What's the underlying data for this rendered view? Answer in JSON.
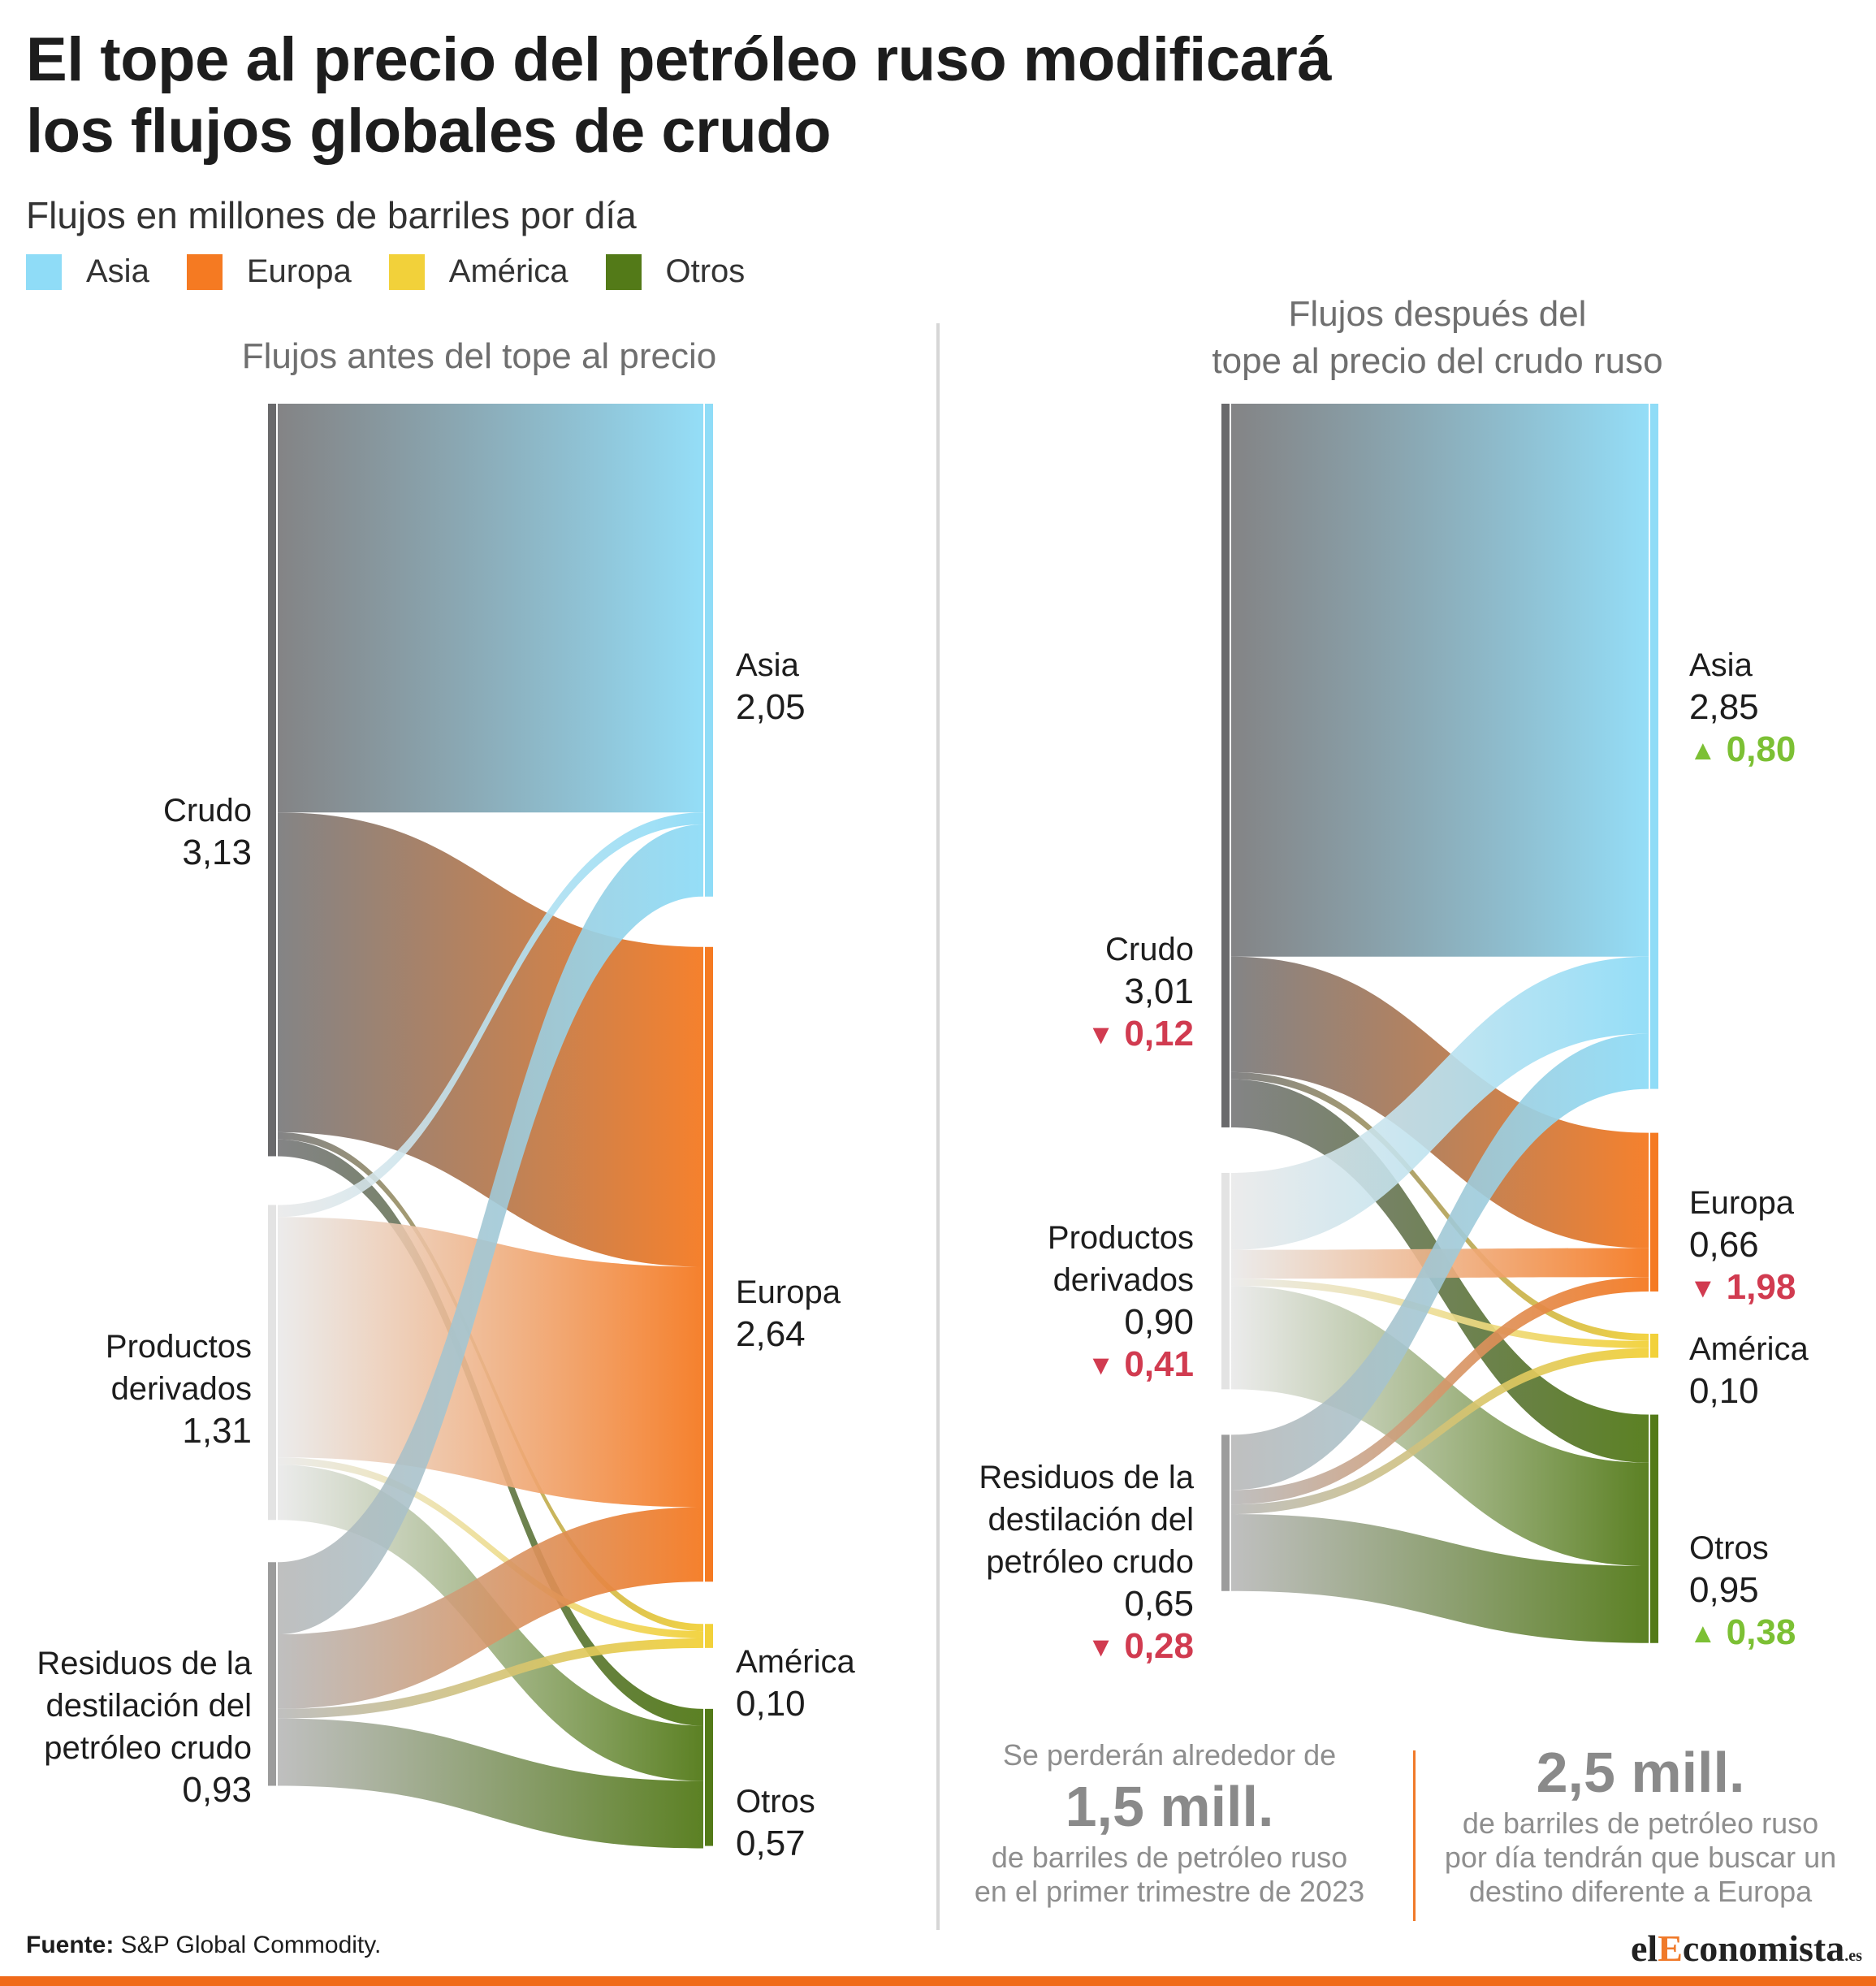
{
  "header": {
    "title": "El tope al precio del petróleo ruso modificará los flujos globales de crudo",
    "subtitle": "Flujos en millones de barriles por día"
  },
  "legend": [
    {
      "label": "Asia",
      "color": "#8fdcf7"
    },
    {
      "label": "Europa",
      "color": "#f57a22"
    },
    {
      "label": "América",
      "color": "#f2d13a"
    },
    {
      "label": "Otros",
      "color": "#537a18"
    }
  ],
  "panels": {
    "before_title": "Flujos antes del tope al precio",
    "after_title_line1": "Flujos después del",
    "after_title_line2": "tope al precio del crudo ruso"
  },
  "nodes_before": {
    "crudo": {
      "label": "Crudo",
      "value": "3,13"
    },
    "productos": {
      "label_1": "Productos",
      "label_2": "derivados",
      "value": "1,31"
    },
    "residuos": {
      "label_1": "Residuos de la",
      "label_2": "destilación del",
      "label_3": "petróleo crudo",
      "value": "0,93"
    },
    "asia": {
      "label": "Asia",
      "value": "2,05"
    },
    "europa": {
      "label": "Europa",
      "value": "2,64"
    },
    "america": {
      "label": "América",
      "value": "0,10"
    },
    "otros": {
      "label": "Otros",
      "value": "0,57"
    }
  },
  "nodes_after": {
    "crudo": {
      "label": "Crudo",
      "value": "3,01",
      "delta": "0,12"
    },
    "productos": {
      "label_1": "Productos",
      "label_2": "derivados",
      "value": "0,90",
      "delta": "0,41"
    },
    "residuos": {
      "label_1": "Residuos de la",
      "label_2": "destilación del",
      "label_3": "petróleo crudo",
      "value": "0,65",
      "delta": "0,28"
    },
    "asia": {
      "label": "Asia",
      "value": "2,85",
      "delta": "0,80"
    },
    "europa": {
      "label": "Europa",
      "value": "0,66",
      "delta": "1,98"
    },
    "america": {
      "label": "América",
      "value": "0,10"
    },
    "otros": {
      "label": "Otros",
      "value": "0,95",
      "delta": "0,38"
    }
  },
  "callouts": {
    "left_top": "Se perderán alrededor de",
    "left_big": "1,5 mill.",
    "left_bottom_1": "de barriles de petróleo ruso",
    "left_bottom_2": "en el primer trimestre de 2023",
    "right_big": "2,5 mill.",
    "right_1": "de barriles de petróleo ruso",
    "right_2": "por día tendrán que buscar un",
    "right_3": "destino diferente a Europa"
  },
  "footer": {
    "source_label": "Fuente:",
    "source_text": "S&P Global Commodity.",
    "logo_1": "el",
    "logo_2": "E",
    "logo_3": "conomista",
    "logo_4": ".es"
  },
  "chart_data": [
    {
      "type": "sankey",
      "title": "Flujos antes del tope al precio",
      "unit": "millones de barriles por día",
      "sources": [
        {
          "name": "Crudo",
          "value": 3.13
        },
        {
          "name": "Productos derivados",
          "value": 1.31
        },
        {
          "name": "Residuos de la destilación del petróleo crudo",
          "value": 0.93
        }
      ],
      "targets": [
        {
          "name": "Asia",
          "value": 2.05
        },
        {
          "name": "Europa",
          "value": 2.64
        },
        {
          "name": "América",
          "value": 0.1
        },
        {
          "name": "Otros",
          "value": 0.57
        }
      ],
      "flows": [
        {
          "source": "Crudo",
          "target": "Asia",
          "value": 1.7
        },
        {
          "source": "Crudo",
          "target": "Europa",
          "value": 1.33
        },
        {
          "source": "Crudo",
          "target": "América",
          "value": 0.03
        },
        {
          "source": "Crudo",
          "target": "Otros",
          "value": 0.07
        },
        {
          "source": "Productos derivados",
          "target": "Asia",
          "value": 0.05
        },
        {
          "source": "Productos derivados",
          "target": "Europa",
          "value": 1.0
        },
        {
          "source": "Productos derivados",
          "target": "América",
          "value": 0.03
        },
        {
          "source": "Productos derivados",
          "target": "Otros",
          "value": 0.23
        },
        {
          "source": "Residuos de la destilación del petróleo crudo",
          "target": "Asia",
          "value": 0.3
        },
        {
          "source": "Residuos de la destilación del petróleo crudo",
          "target": "Europa",
          "value": 0.31
        },
        {
          "source": "Residuos de la destilación del petróleo crudo",
          "target": "América",
          "value": 0.04
        },
        {
          "source": "Residuos de la destilación del petróleo crudo",
          "target": "Otros",
          "value": 0.28
        }
      ]
    },
    {
      "type": "sankey",
      "title": "Flujos después del tope al precio del crudo ruso",
      "unit": "millones de barriles por día",
      "sources": [
        {
          "name": "Crudo",
          "value": 3.01,
          "change": -0.12
        },
        {
          "name": "Productos derivados",
          "value": 0.9,
          "change": -0.41
        },
        {
          "name": "Residuos de la destilación del petróleo crudo",
          "value": 0.65,
          "change": -0.28
        }
      ],
      "targets": [
        {
          "name": "Asia",
          "value": 2.85,
          "change": 0.8
        },
        {
          "name": "Europa",
          "value": 0.66,
          "change": -1.98
        },
        {
          "name": "América",
          "value": 0.1
        },
        {
          "name": "Otros",
          "value": 0.95,
          "change": 0.38
        }
      ],
      "flows": [
        {
          "source": "Crudo",
          "target": "Asia",
          "value": 2.3
        },
        {
          "source": "Crudo",
          "target": "Europa",
          "value": 0.48
        },
        {
          "source": "Crudo",
          "target": "América",
          "value": 0.03
        },
        {
          "source": "Crudo",
          "target": "Otros",
          "value": 0.2
        },
        {
          "source": "Productos derivados",
          "target": "Asia",
          "value": 0.32
        },
        {
          "source": "Productos derivados",
          "target": "Europa",
          "value": 0.12
        },
        {
          "source": "Productos derivados",
          "target": "América",
          "value": 0.03
        },
        {
          "source": "Productos derivados",
          "target": "Otros",
          "value": 0.43
        },
        {
          "source": "Residuos de la destilación del petróleo crudo",
          "target": "Asia",
          "value": 0.23
        },
        {
          "source": "Residuos de la destilación del petróleo crudo",
          "target": "Europa",
          "value": 0.06
        },
        {
          "source": "Residuos de la destilación del petróleo crudo",
          "target": "América",
          "value": 0.04
        },
        {
          "source": "Residuos de la destilación del petróleo crudo",
          "target": "Otros",
          "value": 0.32
        }
      ]
    }
  ]
}
